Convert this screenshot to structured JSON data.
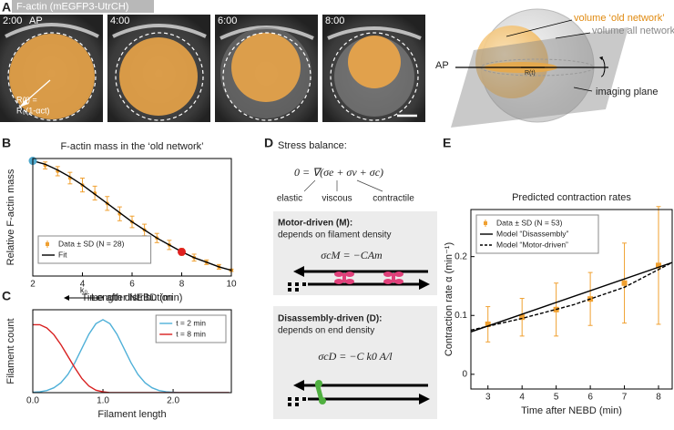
{
  "panel_labels": {
    "a": "A",
    "b": "B",
    "c": "C",
    "d": "D",
    "e": "E"
  },
  "panel_a": {
    "banner": "F-actin (mEGFP3-UtrCH)",
    "times": [
      "2:00",
      "4:00",
      "6:00",
      "8:00"
    ],
    "ap": "AP",
    "radius_label_1": "R(t) =",
    "radius_label_2": "R₀(1-αct)"
  },
  "schematic": {
    "old_network": "volume ‘old network’",
    "all_network": "volume all network",
    "ap": "AP",
    "radius": "R(t)",
    "plane": "imaging plane"
  },
  "panel_d": {
    "heading": "Stress balance:",
    "equation": "0 = ∇(σe + σv + σc)",
    "terms": [
      "elastic",
      "viscous",
      "contractile"
    ],
    "motor_title": "Motor-driven (M):",
    "motor_text": "depends on filament density",
    "motor_equation": "σcM = −CAm",
    "dis_title": "Disassembly-driven (D):",
    "dis_text": "depends on end density",
    "dis_equation": "σcD = −C k0 A/l"
  },
  "chart_data": [
    {
      "type": "line",
      "title": "F-actin mass in the ‘old network’",
      "xlabel": "Time after NEBD (min)",
      "ylabel": "Relative F-actin mass",
      "xlim": [
        2,
        10
      ],
      "ylim": [
        0,
        1.02
      ],
      "xticks": [
        2,
        4,
        6,
        8,
        10
      ],
      "legend": "lower left",
      "series": [
        {
          "name": "Data ± SD (N = 28)",
          "color": "#f0a030",
          "style": "errorbar",
          "marker": "dot",
          "x": [
            2,
            2.5,
            3,
            3.5,
            4,
            4.5,
            5,
            5.5,
            6,
            6.5,
            7,
            7.5,
            8,
            8.5,
            9,
            9.5,
            10
          ],
          "values": [
            1.0,
            0.96,
            0.91,
            0.85,
            0.79,
            0.72,
            0.63,
            0.54,
            0.47,
            0.4,
            0.33,
            0.27,
            0.21,
            0.16,
            0.12,
            0.08,
            0.05
          ],
          "errors": [
            0,
            0.03,
            0.04,
            0.05,
            0.06,
            0.06,
            0.06,
            0.06,
            0.05,
            0.05,
            0.04,
            0.04,
            0.03,
            0.03,
            0.02,
            0.02,
            0.01
          ]
        },
        {
          "name": "Fit",
          "color": "#000000",
          "style": "line",
          "x": [
            2,
            2.5,
            3,
            3.5,
            4,
            4.5,
            5,
            5.5,
            6,
            6.5,
            7,
            7.5,
            8,
            8.5,
            9,
            9.5,
            10
          ],
          "values": [
            1.0,
            0.97,
            0.92,
            0.86,
            0.79,
            0.71,
            0.63,
            0.55,
            0.47,
            0.4,
            0.33,
            0.27,
            0.21,
            0.16,
            0.12,
            0.08,
            0.05
          ],
          "highlight": [
            {
              "index": 0,
              "color": "#4fa8cc"
            },
            {
              "index": 12,
              "color": "#e02020"
            }
          ]
        }
      ]
    },
    {
      "type": "line",
      "title": "Length distribution",
      "annotation": "k₀",
      "xlabel": "Filament length",
      "ylabel": "Filament count",
      "xlim": [
        0,
        2.83
      ],
      "ylim": [
        0,
        1
      ],
      "xticks": [
        {
          "value": 0,
          "label": "0.0"
        },
        {
          "value": 1,
          "label": "1.0"
        },
        {
          "value": 2,
          "label": "2.0"
        }
      ],
      "legend": "upper right",
      "series": [
        {
          "name": "t = 2 min",
          "color": "#4fb0d8",
          "style": "line",
          "x": [
            0,
            0.1,
            0.2,
            0.3,
            0.4,
            0.5,
            0.6,
            0.7,
            0.8,
            0.9,
            1,
            1.1,
            1.2,
            1.3,
            1.4,
            1.5,
            1.6,
            1.7,
            1.8,
            1.9,
            2,
            2.1,
            2.2,
            2.3,
            2.4,
            2.5,
            2.6,
            2.7,
            2.8
          ],
          "values": [
            0.004,
            0.01,
            0.025,
            0.058,
            0.119,
            0.219,
            0.362,
            0.534,
            0.705,
            0.832,
            0.88,
            0.832,
            0.705,
            0.534,
            0.362,
            0.219,
            0.119,
            0.058,
            0.025,
            0.01,
            0.004,
            0,
            0,
            0,
            0,
            0,
            0,
            0,
            0
          ]
        },
        {
          "name": "t = 8 min",
          "color": "#d82020",
          "style": "line",
          "x": [
            0,
            0.1,
            0.2,
            0.3,
            0.4,
            0.5,
            0.6,
            0.7,
            0.8,
            0.9,
            1,
            1.1,
            1.2,
            1.3,
            1.4,
            1.5,
            1.6,
            1.7,
            1.8,
            1.9,
            2,
            2.1,
            2.2,
            2.3,
            2.4,
            2.5,
            2.6,
            2.7,
            2.8
          ],
          "values": [
            0.82,
            0.82,
            0.78,
            0.7,
            0.58,
            0.44,
            0.3,
            0.17,
            0.08,
            0.03,
            0.01,
            0,
            0,
            0,
            0,
            0,
            0,
            0,
            0,
            0,
            0,
            0,
            0,
            0,
            0,
            0,
            0,
            0,
            0
          ]
        }
      ]
    },
    {
      "type": "line",
      "title": "Predicted contraction rates",
      "xlabel": "Time after NEBD (min)",
      "ylabel": "Contraction rate α (min⁻¹)",
      "xlim": [
        2.5,
        8.4
      ],
      "ylim": [
        -0.025,
        0.28
      ],
      "xticks": [
        3,
        4,
        5,
        6,
        7,
        8
      ],
      "yticks": [
        0,
        0.1,
        0.2
      ],
      "legend": "upper left",
      "series": [
        {
          "name": "Data ± SD (N = 53)",
          "color": "#f0a030",
          "style": "errorbar",
          "marker": "square",
          "x": [
            3,
            4,
            5,
            6,
            7,
            8
          ],
          "values": [
            0.085,
            0.097,
            0.11,
            0.128,
            0.155,
            0.185
          ],
          "errors": [
            0.03,
            0.032,
            0.045,
            0.045,
            0.068,
            0.1
          ]
        },
        {
          "name": "Model “Disassembly”",
          "color": "#000000",
          "style": "line",
          "x": [
            2.5,
            8.4
          ],
          "values": [
            0.072,
            0.19
          ]
        },
        {
          "name": "Model “Motor-driven”",
          "color": "#000000",
          "style": "line",
          "dash": true,
          "x": [
            2.5,
            4,
            5.5,
            7,
            8.4
          ],
          "values": [
            0.075,
            0.095,
            0.118,
            0.148,
            0.19
          ]
        }
      ]
    }
  ]
}
